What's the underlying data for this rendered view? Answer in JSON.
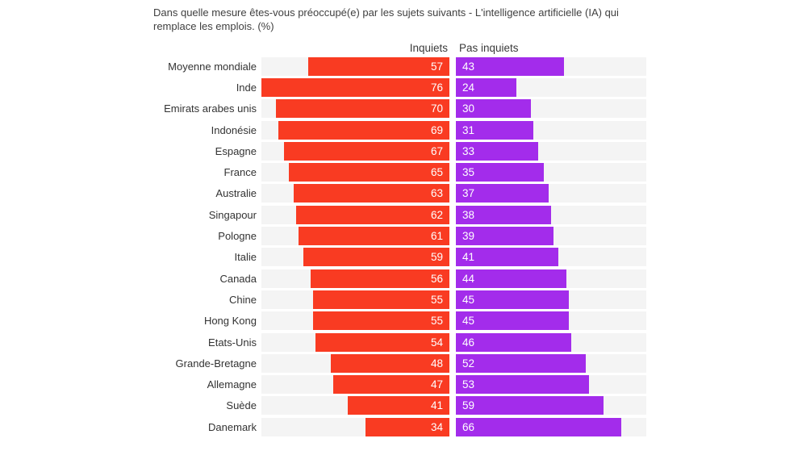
{
  "title_lines": [
    "Dans quelle mesure êtes-vous préoccupé(e) par les sujets suivants - L'intelligence artificielle (IA) qui",
    "remplace les emplois. (%)"
  ],
  "legend": {
    "worried": "Inquiets",
    "not_worried": "Pas inquiets"
  },
  "colors": {
    "worried": "#f93b22",
    "not_worried": "#a32ceb",
    "track": "#f4f4f4",
    "value_text": "#ffffff",
    "label_text": "#333333",
    "title_text": "#404040",
    "background": "#ffffff"
  },
  "chart_data": {
    "type": "bar",
    "orientation": "horizontal-diverging",
    "title": "Dans quelle mesure êtes-vous préoccupé(e) par les sujets suivants - L'intelligence artificielle (IA) qui remplace les emplois. (%)",
    "legend_position": "top",
    "grid": false,
    "value_axis_max": 76,
    "categories": [
      "Moyenne mondiale",
      "Inde",
      "Emirats arabes unis",
      "Indonésie",
      "Espagne",
      "France",
      "Australie",
      "Singapour",
      "Pologne",
      "Italie",
      "Canada",
      "Chine",
      "Hong Kong",
      "Etats-Unis",
      "Grande-Bretagne",
      "Allemagne",
      "Suède",
      "Danemark"
    ],
    "series": [
      {
        "name": "Inquiets",
        "values": [
          57,
          76,
          70,
          69,
          67,
          65,
          63,
          62,
          61,
          59,
          56,
          55,
          55,
          54,
          48,
          47,
          41,
          34
        ]
      },
      {
        "name": "Pas inquiets",
        "values": [
          43,
          24,
          30,
          31,
          33,
          35,
          37,
          38,
          39,
          41,
          44,
          45,
          45,
          46,
          52,
          53,
          59,
          66
        ]
      }
    ]
  }
}
